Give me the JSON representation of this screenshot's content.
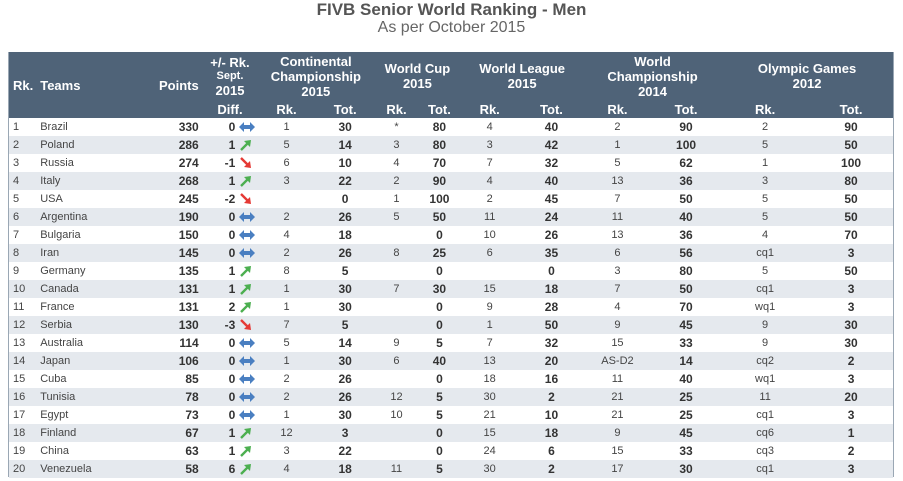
{
  "title": "FIVB Senior World Ranking - Men",
  "subtitle": "As per October 2015",
  "headers": {
    "rk": "Rk.",
    "teams": "Teams",
    "points": "Points",
    "rk_sept_l1": "+/- Rk.",
    "rk_sept_l2": "Sept.",
    "rk_sept_l3": "2015",
    "diff": "Diff.",
    "cont_l1": "Continental",
    "cont_l2": "Championship",
    "cont_l3": "2015",
    "wcup_l1": "World Cup",
    "wcup_l2": "2015",
    "wleague_l1": "World League",
    "wleague_l2": "2015",
    "wchamp_l1": "World",
    "wchamp_l2": "Championship",
    "wchamp_l3": "2014",
    "oly_l1": "Olympic Games",
    "oly_l2": "2012",
    "sub_rk": "Rk.",
    "sub_tot": "Tot."
  },
  "colors": {
    "header_bg": "#4f6378",
    "row_alt": "#e5e9ee",
    "up": "#4caf50",
    "down": "#e53935",
    "same": "#4a7fc1"
  },
  "rows": [
    {
      "rk": "1",
      "team": "Brazil",
      "points": "330",
      "diff": "0",
      "trend": "same",
      "cr": "1",
      "ct": "30",
      "wr": "*",
      "wt": "80",
      "lr": "4",
      "lt": "40",
      "chr": "2",
      "cht": "90",
      "or": "2",
      "ot": "90"
    },
    {
      "rk": "2",
      "team": "Poland",
      "points": "286",
      "diff": "1",
      "trend": "up",
      "cr": "5",
      "ct": "14",
      "wr": "3",
      "wt": "80",
      "lr": "3",
      "lt": "42",
      "chr": "1",
      "cht": "100",
      "or": "5",
      "ot": "50"
    },
    {
      "rk": "3",
      "team": "Russia",
      "points": "274",
      "diff": "-1",
      "trend": "down",
      "cr": "6",
      "ct": "10",
      "wr": "4",
      "wt": "70",
      "lr": "7",
      "lt": "32",
      "chr": "5",
      "cht": "62",
      "or": "1",
      "ot": "100"
    },
    {
      "rk": "4",
      "team": "Italy",
      "points": "268",
      "diff": "1",
      "trend": "up",
      "cr": "3",
      "ct": "22",
      "wr": "2",
      "wt": "90",
      "lr": "4",
      "lt": "40",
      "chr": "13",
      "cht": "36",
      "or": "3",
      "ot": "80"
    },
    {
      "rk": "5",
      "team": "USA",
      "points": "245",
      "diff": "-2",
      "trend": "down",
      "cr": "",
      "ct": "0",
      "wr": "1",
      "wt": "100",
      "lr": "2",
      "lt": "45",
      "chr": "7",
      "cht": "50",
      "or": "5",
      "ot": "50"
    },
    {
      "rk": "6",
      "team": "Argentina",
      "points": "190",
      "diff": "0",
      "trend": "same",
      "cr": "2",
      "ct": "26",
      "wr": "5",
      "wt": "50",
      "lr": "11",
      "lt": "24",
      "chr": "11",
      "cht": "40",
      "or": "5",
      "ot": "50"
    },
    {
      "rk": "7",
      "team": "Bulgaria",
      "points": "150",
      "diff": "0",
      "trend": "same",
      "cr": "4",
      "ct": "18",
      "wr": "",
      "wt": "0",
      "lr": "10",
      "lt": "26",
      "chr": "13",
      "cht": "36",
      "or": "4",
      "ot": "70"
    },
    {
      "rk": "8",
      "team": "Iran",
      "points": "145",
      "diff": "0",
      "trend": "same",
      "cr": "2",
      "ct": "26",
      "wr": "8",
      "wt": "25",
      "lr": "6",
      "lt": "35",
      "chr": "6",
      "cht": "56",
      "or": "cq1",
      "ot": "3"
    },
    {
      "rk": "9",
      "team": "Germany",
      "points": "135",
      "diff": "1",
      "trend": "up",
      "cr": "8",
      "ct": "5",
      "wr": "",
      "wt": "0",
      "lr": "",
      "lt": "0",
      "chr": "3",
      "cht": "80",
      "or": "5",
      "ot": "50"
    },
    {
      "rk": "10",
      "team": "Canada",
      "points": "131",
      "diff": "1",
      "trend": "up",
      "cr": "1",
      "ct": "30",
      "wr": "7",
      "wt": "30",
      "lr": "15",
      "lt": "18",
      "chr": "7",
      "cht": "50",
      "or": "cq1",
      "ot": "3"
    },
    {
      "rk": "11",
      "team": "France",
      "points": "131",
      "diff": "2",
      "trend": "up",
      "cr": "1",
      "ct": "30",
      "wr": "",
      "wt": "0",
      "lr": "9",
      "lt": "28",
      "chr": "4",
      "cht": "70",
      "or": "wq1",
      "ot": "3"
    },
    {
      "rk": "12",
      "team": "Serbia",
      "points": "130",
      "diff": "-3",
      "trend": "down",
      "cr": "7",
      "ct": "5",
      "wr": "",
      "wt": "0",
      "lr": "1",
      "lt": "50",
      "chr": "9",
      "cht": "45",
      "or": "9",
      "ot": "30"
    },
    {
      "rk": "13",
      "team": "Australia",
      "points": "114",
      "diff": "0",
      "trend": "same",
      "cr": "5",
      "ct": "14",
      "wr": "9",
      "wt": "5",
      "lr": "7",
      "lt": "32",
      "chr": "15",
      "cht": "33",
      "or": "9",
      "ot": "30"
    },
    {
      "rk": "14",
      "team": "Japan",
      "points": "106",
      "diff": "0",
      "trend": "same",
      "cr": "1",
      "ct": "30",
      "wr": "6",
      "wt": "40",
      "lr": "13",
      "lt": "20",
      "chr": "AS-D2",
      "cht": "14",
      "or": "cq2",
      "ot": "2"
    },
    {
      "rk": "15",
      "team": "Cuba",
      "points": "85",
      "diff": "0",
      "trend": "same",
      "cr": "2",
      "ct": "26",
      "wr": "",
      "wt": "0",
      "lr": "18",
      "lt": "16",
      "chr": "11",
      "cht": "40",
      "or": "wq1",
      "ot": "3"
    },
    {
      "rk": "16",
      "team": "Tunisia",
      "points": "78",
      "diff": "0",
      "trend": "same",
      "cr": "2",
      "ct": "26",
      "wr": "12",
      "wt": "5",
      "lr": "30",
      "lt": "2",
      "chr": "21",
      "cht": "25",
      "or": "11",
      "ot": "20"
    },
    {
      "rk": "17",
      "team": "Egypt",
      "points": "73",
      "diff": "0",
      "trend": "same",
      "cr": "1",
      "ct": "30",
      "wr": "10",
      "wt": "5",
      "lr": "21",
      "lt": "10",
      "chr": "21",
      "cht": "25",
      "or": "cq1",
      "ot": "3"
    },
    {
      "rk": "18",
      "team": "Finland",
      "points": "67",
      "diff": "1",
      "trend": "up",
      "cr": "12",
      "ct": "3",
      "wr": "",
      "wt": "0",
      "lr": "15",
      "lt": "18",
      "chr": "9",
      "cht": "45",
      "or": "cq6",
      "ot": "1"
    },
    {
      "rk": "19",
      "team": "China",
      "points": "63",
      "diff": "1",
      "trend": "up",
      "cr": "3",
      "ct": "22",
      "wr": "",
      "wt": "0",
      "lr": "24",
      "lt": "6",
      "chr": "15",
      "cht": "33",
      "or": "cq3",
      "ot": "2"
    },
    {
      "rk": "20",
      "team": "Venezuela",
      "points": "58",
      "diff": "6",
      "trend": "up",
      "cr": "4",
      "ct": "18",
      "wr": "11",
      "wt": "5",
      "lr": "30",
      "lt": "2",
      "chr": "17",
      "cht": "30",
      "or": "cq1",
      "ot": "3"
    }
  ]
}
